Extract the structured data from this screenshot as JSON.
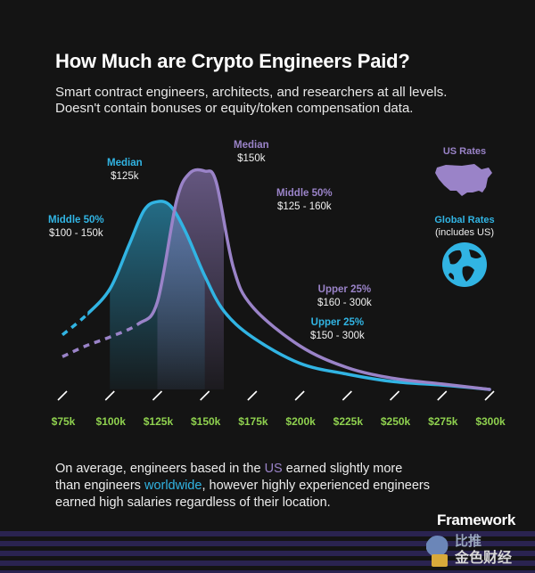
{
  "header": {
    "title": "How Much are Crypto Engineers Paid?",
    "subtitle_line1": "Smart contract engineers, architects, and researchers at all levels.",
    "subtitle_line2": "Doesn't contain bonuses or equity/token compensation data."
  },
  "annotations": {
    "global_median": {
      "label": "Median",
      "value": "$125k"
    },
    "global_middle": {
      "label": "Middle 50%",
      "value": "$100 - 150k"
    },
    "global_upper": {
      "label": "Upper 25%",
      "value": "$150 - 300k"
    },
    "us_median": {
      "label": "Median",
      "value": "$150k"
    },
    "us_middle": {
      "label": "Middle 50%",
      "value": "$125 - 160k"
    },
    "us_upper": {
      "label": "Upper 25%",
      "value": "$160 - 300k"
    }
  },
  "legend": {
    "us": "US Rates",
    "global": "Global Rates",
    "global_note": "(includes US)"
  },
  "footnote": {
    "part1": "On average, engineers based in the ",
    "us_word": "US",
    "part2": " earned slightly more",
    "line2_part1": "than engineers ",
    "worldwide_word": "worldwide",
    "line2_part2": ", however highly experienced engineers",
    "line3": "earned high salaries regardless of their location."
  },
  "brand": "Framework",
  "watermark": {
    "line1": "比推",
    "line2": "金色财经"
  },
  "colors": {
    "background": "#141414",
    "global": "#31b4e3",
    "us": "#9a83c8",
    "tick_labels": "#8fd14f"
  },
  "chart_data": {
    "type": "area",
    "x_unit": "salary (USD)",
    "x_ticks": [
      "$75k",
      "$100k",
      "$125k",
      "$150k",
      "$175k",
      "$200k",
      "$225k",
      "$250k",
      "$275k",
      "$300k"
    ],
    "xlim": [
      75000,
      300000
    ],
    "series": [
      {
        "name": "Global Rates",
        "median": 125000,
        "middle_50": [
          100000,
          150000
        ],
        "upper_25": [
          150000,
          300000
        ],
        "x": [
          75000,
          87500,
          100000,
          110000,
          118000,
          125000,
          132000,
          140000,
          150000,
          160000,
          175000,
          200000,
          225000,
          250000,
          275000,
          300000
        ],
        "y": [
          0.25,
          0.34,
          0.46,
          0.66,
          0.82,
          0.86,
          0.84,
          0.72,
          0.52,
          0.36,
          0.24,
          0.12,
          0.07,
          0.035,
          0.02,
          0.0
        ]
      },
      {
        "name": "US Rates",
        "median": 150000,
        "middle_50": [
          125000,
          160000
        ],
        "upper_25": [
          160000,
          300000
        ],
        "x": [
          75000,
          87500,
          100000,
          115000,
          125000,
          135000,
          142000,
          150000,
          156000,
          165000,
          175000,
          200000,
          225000,
          250000,
          275000,
          300000
        ],
        "y": [
          0.15,
          0.2,
          0.24,
          0.3,
          0.4,
          0.86,
          0.99,
          1.0,
          0.95,
          0.56,
          0.38,
          0.2,
          0.1,
          0.05,
          0.025,
          0.0
        ]
      }
    ]
  }
}
